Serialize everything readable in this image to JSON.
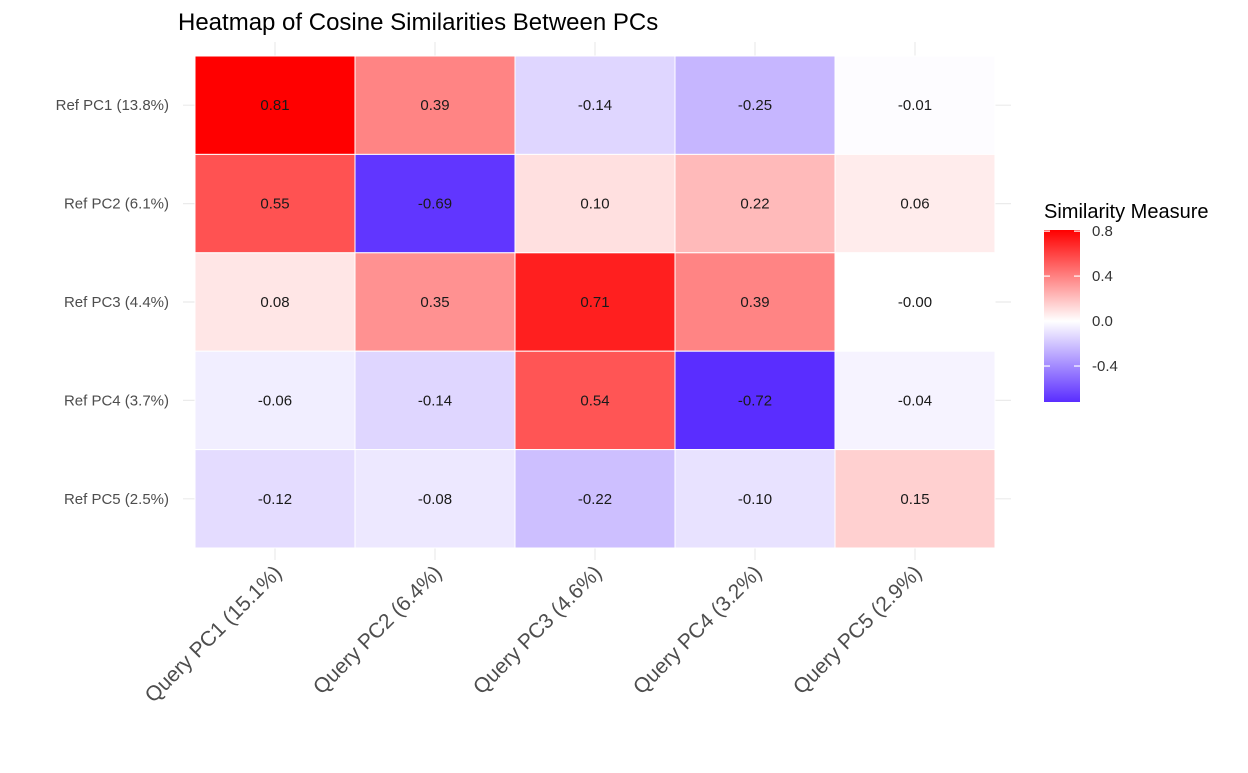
{
  "chart_data": {
    "type": "heatmap",
    "title": "Heatmap of Cosine Similarities Between PCs",
    "xlabel": "",
    "ylabel": "",
    "x_categories": [
      "Query PC1 (15.1%)",
      "Query PC2 (6.4%)",
      "Query PC3 (4.6%)",
      "Query PC4 (3.2%)",
      "Query PC5 (2.9%)"
    ],
    "y_categories": [
      "Ref PC1 (13.8%)",
      "Ref PC2 (6.1%)",
      "Ref PC3 (4.4%)",
      "Ref PC4 (3.7%)",
      "Ref PC5 (2.5%)"
    ],
    "values": [
      [
        0.81,
        0.39,
        -0.14,
        -0.25,
        -0.01
      ],
      [
        0.55,
        -0.69,
        0.1,
        0.22,
        0.06
      ],
      [
        0.08,
        0.35,
        0.71,
        0.39,
        -0.0
      ],
      [
        -0.06,
        -0.14,
        0.54,
        -0.72,
        -0.04
      ],
      [
        -0.12,
        -0.08,
        -0.22,
        -0.1,
        0.15
      ]
    ],
    "labels": [
      [
        "0.81",
        "0.39",
        "-0.14",
        "-0.25",
        "-0.01"
      ],
      [
        "0.55",
        "-0.69",
        "0.10",
        "0.22",
        "0.06"
      ],
      [
        "0.08",
        "0.35",
        "0.71",
        "0.39",
        "-0.00"
      ],
      [
        "-0.06",
        "-0.14",
        "0.54",
        "-0.72",
        "-0.04"
      ],
      [
        "-0.12",
        "-0.08",
        "-0.22",
        "-0.10",
        "0.15"
      ]
    ],
    "color_scale": {
      "low_color": "#5a2dff",
      "mid_color": "#ffffff",
      "high_color": "#ff0000",
      "midpoint": 0,
      "limits": [
        -0.72,
        0.81
      ]
    },
    "legend": {
      "title": "Similarity Measure",
      "ticks": [
        0.8,
        0.4,
        0.0,
        -0.4
      ],
      "tick_labels": [
        "0.8",
        "0.4",
        "0.0",
        "-0.4"
      ],
      "placement": "right"
    },
    "grid": true
  }
}
